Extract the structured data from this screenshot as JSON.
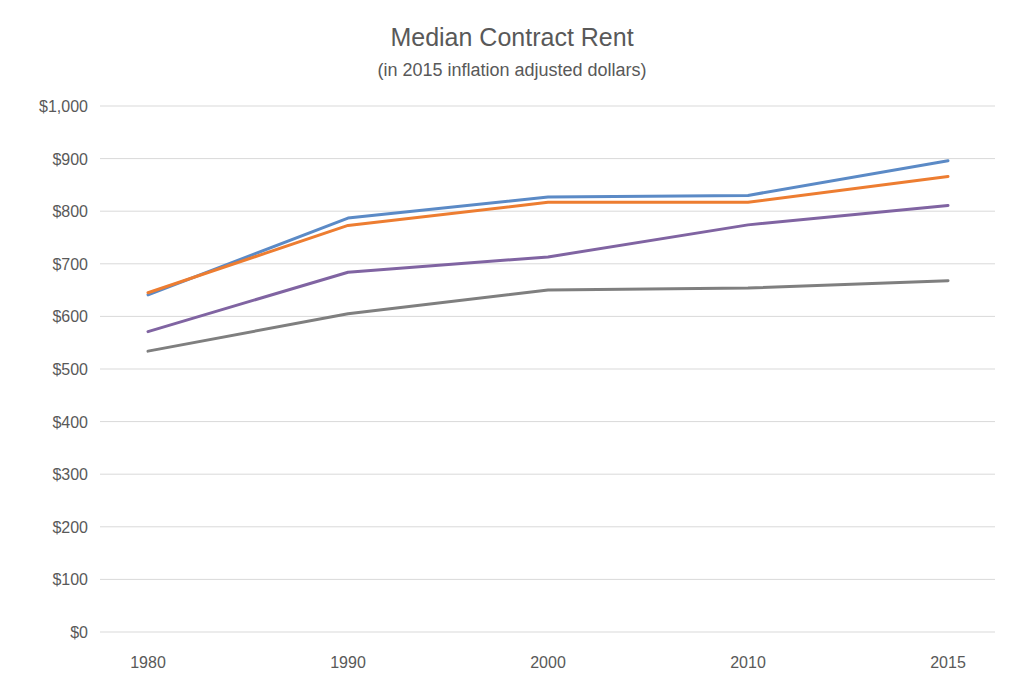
{
  "chart_data": {
    "type": "line",
    "title": "Median Contract Rent",
    "subtitle": "(in 2015 inflation adjusted dollars)",
    "categories": [
      "1980",
      "1990",
      "2000",
      "2010",
      "2015"
    ],
    "series": [
      {
        "color": "#5b8ac6",
        "values": [
          641,
          787,
          827,
          830,
          896
        ]
      },
      {
        "color": "#ed7d31",
        "values": [
          645,
          773,
          817,
          817,
          866
        ]
      },
      {
        "color": "#8064a2",
        "values": [
          571,
          684,
          713,
          774,
          811
        ]
      },
      {
        "color": "#7f7f7f",
        "values": [
          534,
          605,
          650,
          654,
          668
        ]
      }
    ],
    "ylim": [
      0,
      1000
    ],
    "yticks": [
      {
        "value": 0,
        "label": "$0"
      },
      {
        "value": 100,
        "label": "$100"
      },
      {
        "value": 200,
        "label": "$200"
      },
      {
        "value": 300,
        "label": "$300"
      },
      {
        "value": 400,
        "label": "$400"
      },
      {
        "value": 500,
        "label": "$500"
      },
      {
        "value": 600,
        "label": "$600"
      },
      {
        "value": 700,
        "label": "$700"
      },
      {
        "value": 800,
        "label": "$800"
      },
      {
        "value": 900,
        "label": "$900"
      },
      {
        "value": 1000,
        "label": "$1,000"
      }
    ],
    "grid": true
  }
}
